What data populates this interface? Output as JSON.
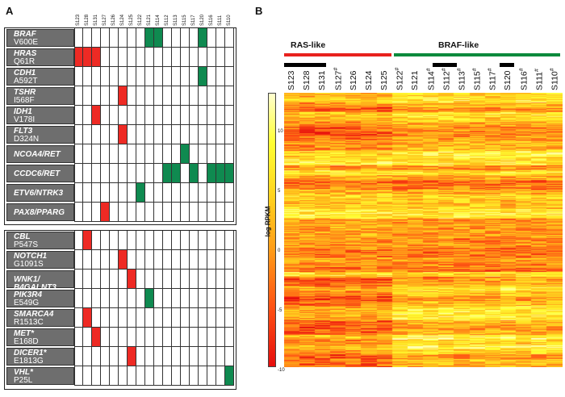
{
  "panel_a": {
    "letter": "A",
    "samples": [
      "S123",
      "S128",
      "S131",
      "S127",
      "S126",
      "S124",
      "S125",
      "S122",
      "S121",
      "S114",
      "S112",
      "S113",
      "S115",
      "S117",
      "S120",
      "S116",
      "S111",
      "S110"
    ],
    "top_rows": [
      {
        "gene": "BRAF",
        "variant": "V600E",
        "red": [],
        "green": [
          8,
          9,
          14
        ]
      },
      {
        "gene": "HRAS",
        "variant": "Q61R",
        "red": [
          0,
          1,
          2
        ],
        "green": []
      },
      {
        "gene": "CDH1",
        "variant": "A592T",
        "red": [],
        "green": [
          14
        ]
      },
      {
        "gene": "TSHR",
        "variant": "I568F",
        "red": [
          5
        ],
        "green": []
      },
      {
        "gene": "IDH1",
        "variant": "V178I",
        "red": [
          2
        ],
        "green": []
      },
      {
        "gene": "FLT3",
        "variant": "D324N",
        "red": [
          5
        ],
        "green": []
      },
      {
        "gene": "NCOA4/RET",
        "variant": "",
        "red": [],
        "green": [
          12
        ]
      },
      {
        "gene": "CCDC6/RET",
        "variant": "",
        "red": [],
        "green": [
          10,
          11,
          13,
          15,
          16,
          17
        ]
      },
      {
        "gene": "ETV6/NTRK3",
        "variant": "",
        "red": [],
        "green": [
          7
        ]
      },
      {
        "gene": "PAX8/PPARG",
        "variant": "",
        "red": [
          3
        ],
        "green": []
      }
    ],
    "bottom_rows": [
      {
        "gene": "CBL",
        "variant": "P547S",
        "red": [
          1
        ],
        "green": []
      },
      {
        "gene": "NOTCH1",
        "variant": "G1091S",
        "red": [
          5
        ],
        "green": []
      },
      {
        "gene": "WNK1/ B4GALNT3",
        "variant": "",
        "red": [
          6
        ],
        "green": []
      },
      {
        "gene": "PIK3R4",
        "variant": "E549G",
        "red": [],
        "green": [
          8
        ]
      },
      {
        "gene": "SMARCA4",
        "variant": "R1513C",
        "red": [
          1
        ],
        "green": []
      },
      {
        "gene": "MET*",
        "variant": "E168D",
        "red": [
          2
        ],
        "green": []
      },
      {
        "gene": "DICER1*",
        "variant": "E1813G",
        "red": [
          6
        ],
        "green": []
      },
      {
        "gene": "VHL*",
        "variant": "P25L",
        "red": [],
        "green": [
          17
        ]
      }
    ],
    "colors": {
      "red": "#ee2a24",
      "green": "#0f8a50",
      "label_bg": "#6e6e6e"
    }
  },
  "panel_b": {
    "letter": "B",
    "group_ras": "RAS-like",
    "group_braf": "BRAF-like",
    "columns": [
      {
        "name": "S123",
        "mark": ""
      },
      {
        "name": "S128",
        "mark": ""
      },
      {
        "name": "S131",
        "mark": ""
      },
      {
        "name": "S127",
        "mark": "#"
      },
      {
        "name": "S126",
        "mark": ""
      },
      {
        "name": "S124",
        "mark": ""
      },
      {
        "name": "S125",
        "mark": ""
      },
      {
        "name": "S122",
        "mark": "#"
      },
      {
        "name": "S121",
        "mark": ""
      },
      {
        "name": "S114",
        "mark": "#"
      },
      {
        "name": "S112",
        "mark": "#"
      },
      {
        "name": "S113",
        "mark": "#"
      },
      {
        "name": "S115",
        "mark": "#"
      },
      {
        "name": "S117",
        "mark": "#"
      },
      {
        "name": "S120",
        "mark": ""
      },
      {
        "name": "S116",
        "mark": "#"
      },
      {
        "name": "S111",
        "mark": "#"
      },
      {
        "name": "S110",
        "mark": "#"
      }
    ],
    "colorbar_label": "log RPKM",
    "colorbar_ticks": [
      "10",
      "5",
      "0",
      "-5",
      "-10"
    ],
    "colors": {
      "ras": "#e8211d",
      "braf": "#0b8a3c"
    }
  }
}
